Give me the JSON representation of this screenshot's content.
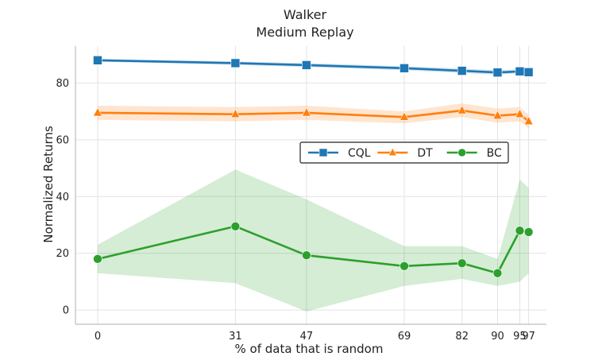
{
  "chart_data": {
    "type": "line",
    "title": [
      "Walker",
      "Medium Replay"
    ],
    "xlabel": "% of data that is random",
    "ylabel": "Normalized Returns",
    "x": [
      0,
      31,
      47,
      69,
      82,
      90,
      95,
      97
    ],
    "x_tick_labels": [
      "0",
      "31",
      "47",
      "69",
      "82",
      "90",
      "95",
      "97"
    ],
    "xlim": [
      -5,
      101
    ],
    "y_ticks": [
      0,
      20,
      40,
      60,
      80
    ],
    "ylim": [
      -5,
      93
    ],
    "grid": true,
    "legend_position": "center-right",
    "series": [
      {
        "name": "CQL",
        "color": "#1f77b4",
        "marker": "square",
        "values": [
          88.0,
          87.0,
          86.3,
          85.2,
          84.3,
          83.7,
          84.1,
          83.8
        ],
        "lower": [
          87.5,
          86.4,
          85.6,
          84.5,
          83.5,
          82.9,
          83.4,
          83.1
        ],
        "upper": [
          88.5,
          87.6,
          87.0,
          85.9,
          85.1,
          84.5,
          84.8,
          84.5
        ]
      },
      {
        "name": "DT",
        "color": "#ff7f0e",
        "marker": "triangle",
        "values": [
          69.5,
          69.0,
          69.5,
          68.0,
          70.3,
          68.5,
          69.0,
          66.5
        ],
        "lower": [
          67.0,
          66.5,
          67.0,
          65.8,
          68.0,
          66.0,
          66.5,
          64.0
        ],
        "upper": [
          72.0,
          71.5,
          72.0,
          70.0,
          72.8,
          71.0,
          71.5,
          68.8
        ]
      },
      {
        "name": "BC",
        "color": "#2ca02c",
        "marker": "circle",
        "values": [
          18.0,
          29.5,
          19.3,
          15.5,
          16.5,
          13.0,
          28.0,
          27.5
        ],
        "lower": [
          13.0,
          9.5,
          -0.5,
          8.5,
          11.0,
          8.5,
          10.0,
          13.0
        ],
        "upper": [
          23.0,
          49.5,
          39.0,
          22.5,
          22.5,
          18.0,
          46.0,
          43.0
        ]
      }
    ]
  }
}
